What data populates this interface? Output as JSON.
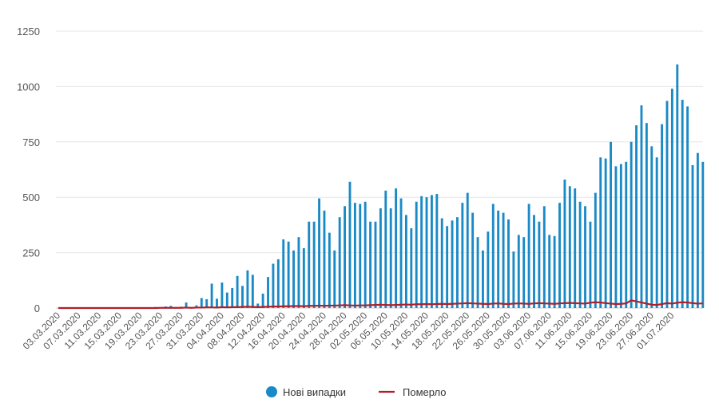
{
  "chart_data": {
    "type": "bar",
    "ylim": [
      0,
      1250
    ],
    "yticks": [
      "0",
      "250",
      "500",
      "750",
      "1000",
      "1250"
    ],
    "grid": true,
    "legend_position": "bottom-center",
    "start_date": "03.03.2020",
    "xtick_labels": [
      "03.03.2020",
      "07.03.2020",
      "11.03.2020",
      "15.03.2020",
      "19.03.2020",
      "23.03.2020",
      "27.03.2020",
      "31.03.2020",
      "04.04.2020",
      "08.04.2020",
      "12.04.2020",
      "16.04.2020",
      "20.04.2020",
      "24.04.2020",
      "28.04.2020",
      "02.05.2020",
      "06.05.2020",
      "10.05.2020",
      "14.05.2020",
      "18.05.2020",
      "22.05.2020",
      "26.05.2020",
      "30.05.2020",
      "03.06.2020",
      "07.06.2020",
      "11.06.2020",
      "15.06.2020",
      "19.06.2020",
      "23.06.2020",
      "27.06.2020",
      "01.07.2020"
    ],
    "series": [
      {
        "name": "Нові випадки",
        "type": "bar",
        "color": "#1a8ac6",
        "values": [
          0,
          0,
          0,
          0,
          0,
          0,
          0,
          1,
          0,
          0,
          0,
          0,
          0,
          1,
          0,
          0,
          1,
          0,
          2,
          5,
          3,
          7,
          10,
          2,
          6,
          25,
          0,
          12,
          45,
          40,
          110,
          42,
          115,
          70,
          90,
          145,
          100,
          170,
          150,
          20,
          65,
          140,
          200,
          220,
          310,
          300,
          260,
          320,
          270,
          390,
          390,
          495,
          440,
          340,
          260,
          410,
          460,
          570,
          475,
          470,
          480,
          390,
          390,
          450,
          530,
          450,
          540,
          495,
          420,
          360,
          480,
          505,
          500,
          510,
          515,
          405,
          370,
          395,
          410,
          475,
          520,
          430,
          320,
          260,
          345,
          470,
          440,
          430,
          400,
          255,
          330,
          320,
          470,
          420,
          390,
          460,
          330,
          325,
          475,
          580,
          550,
          540,
          480,
          460,
          390,
          520,
          680,
          675,
          750,
          640,
          650,
          660,
          750,
          825,
          915,
          835,
          730,
          680,
          830,
          935,
          990,
          1100,
          940,
          910,
          645,
          700,
          660
        ]
      },
      {
        "name": "Померло",
        "type": "line",
        "color": "#b01e28",
        "values": [
          0,
          0,
          0,
          0,
          0,
          0,
          0,
          0,
          0,
          0,
          0,
          0,
          0,
          0,
          0,
          0,
          0,
          0,
          0,
          0,
          1,
          1,
          1,
          1,
          1,
          2,
          1,
          2,
          2,
          3,
          3,
          2,
          4,
          3,
          4,
          4,
          5,
          6,
          5,
          4,
          5,
          6,
          7,
          7,
          8,
          8,
          9,
          9,
          8,
          10,
          10,
          11,
          10,
          11,
          11,
          12,
          13,
          12,
          11,
          12,
          12,
          13,
          14,
          15,
          14,
          13,
          14,
          15,
          16,
          15,
          17,
          17,
          18,
          17,
          18,
          19,
          18,
          19,
          20,
          21,
          22,
          21,
          20,
          19,
          18,
          20,
          21,
          19,
          18,
          20,
          21,
          20,
          19,
          21,
          22,
          21,
          20,
          19,
          21,
          22,
          23,
          22,
          21,
          20,
          24,
          26,
          25,
          22,
          20,
          18,
          19,
          21,
          35,
          30,
          25,
          20,
          15,
          14,
          18,
          22,
          20,
          24,
          26,
          25,
          22,
          20,
          21
        ]
      }
    ]
  }
}
